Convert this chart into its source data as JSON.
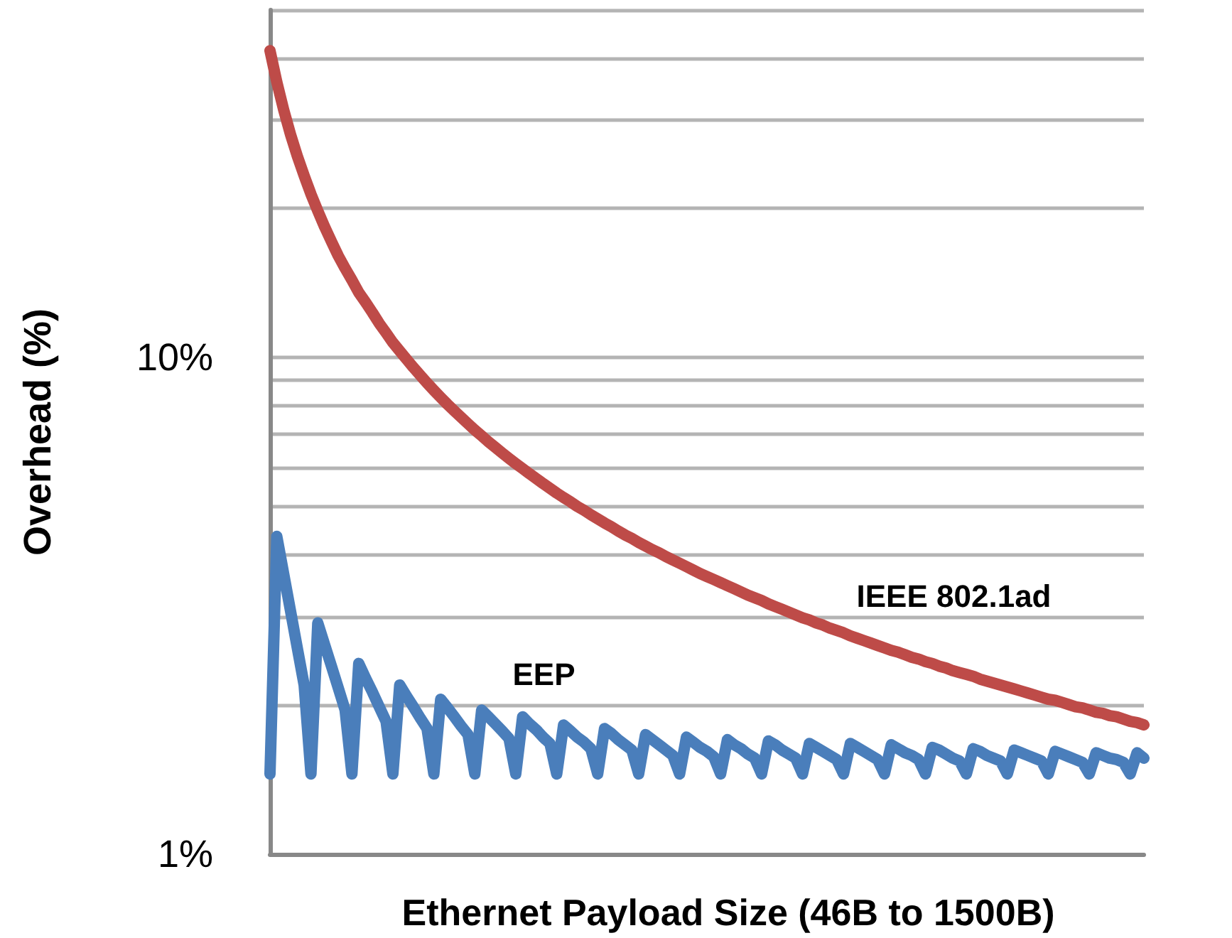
{
  "chart_data": {
    "type": "line",
    "xlabel": "Ethernet Payload Size (46B to 1500B)",
    "ylabel": "Overhead (%)",
    "ylim": [
      1,
      50
    ],
    "log": "y",
    "grid": "y",
    "tick_labels": "y",
    "marker": "none",
    "line_style": "solid",
    "categories": [
      null,
      null,
      null,
      null,
      null,
      null,
      null,
      null,
      null,
      null,
      null,
      null,
      null,
      null,
      null,
      null,
      null,
      null,
      null,
      null,
      null,
      null,
      null,
      null,
      null,
      null,
      null,
      null,
      null,
      null,
      null,
      null,
      null,
      null,
      null,
      null,
      null,
      null,
      null,
      null,
      null,
      null,
      null,
      null,
      null,
      null,
      null,
      null,
      null,
      null,
      null,
      null,
      null,
      null,
      null,
      null,
      null,
      null,
      null,
      null,
      null,
      null,
      null,
      null,
      null,
      null,
      null,
      null,
      null,
      null,
      null,
      null,
      null,
      null,
      null,
      null,
      null,
      null,
      null,
      null,
      null,
      null,
      null,
      null,
      null,
      null,
      null,
      null,
      null,
      null,
      null,
      null,
      null,
      null,
      null,
      null,
      null,
      null,
      null,
      null,
      null,
      null,
      null,
      null,
      null,
      null,
      null,
      null,
      null,
      null,
      null,
      null,
      null,
      null,
      null,
      null,
      null,
      null,
      null,
      null,
      null,
      null,
      null,
      null,
      null,
      null,
      null,
      null,
      null
    ],
    "yticks": [
      {
        "value": 1,
        "label": "1%"
      },
      {
        "value": 2,
        "label": null
      },
      {
        "value": 3,
        "label": null
      },
      {
        "value": 4,
        "label": null
      },
      {
        "value": 5,
        "label": null
      },
      {
        "value": 6,
        "label": null
      },
      {
        "value": 7,
        "label": null
      },
      {
        "value": 8,
        "label": null
      },
      {
        "value": 9,
        "label": null
      },
      {
        "value": 10,
        "label": "10%"
      },
      {
        "value": 20,
        "label": null
      },
      {
        "value": 30,
        "label": null
      },
      {
        "value": 40,
        "label": null
      },
      {
        "value": 50,
        "label": null
      }
    ],
    "series": [
      {
        "name": "IEEE 802.1ad",
        "color": "#be4b48",
        "values": [
          41.4,
          35.8,
          31.5,
          28.1,
          25.4,
          23.2,
          21.3,
          19.7,
          18.3,
          17.1,
          16.0,
          15.1,
          14.3,
          13.5,
          12.9,
          12.3,
          11.7,
          11.2,
          10.7,
          10.3,
          9.91,
          9.54,
          9.2,
          8.88,
          8.58,
          8.3,
          8.04,
          7.8,
          7.57,
          7.35,
          7.14,
          6.95,
          6.76,
          6.59,
          6.42,
          6.26,
          6.11,
          5.97,
          5.83,
          5.7,
          5.57,
          5.45,
          5.33,
          5.22,
          5.12,
          5.01,
          4.92,
          4.82,
          4.73,
          4.64,
          4.56,
          4.47,
          4.39,
          4.32,
          4.24,
          4.17,
          4.1,
          4.04,
          3.97,
          3.91,
          3.85,
          3.79,
          3.73,
          3.67,
          3.62,
          3.57,
          3.52,
          3.47,
          3.42,
          3.37,
          3.32,
          3.28,
          3.24,
          3.19,
          3.15,
          3.11,
          3.07,
          3.03,
          2.99,
          2.96,
          2.92,
          2.89,
          2.85,
          2.82,
          2.79,
          2.75,
          2.72,
          2.69,
          2.66,
          2.63,
          2.6,
          2.57,
          2.55,
          2.52,
          2.49,
          2.47,
          2.44,
          2.42,
          2.39,
          2.37,
          2.34,
          2.32,
          2.3,
          2.28,
          2.25,
          2.23,
          2.21,
          2.19,
          2.17,
          2.15,
          2.13,
          2.11,
          2.09,
          2.07,
          2.05,
          2.04,
          2.02,
          2.0,
          1.98,
          1.97,
          1.95,
          1.93,
          1.92,
          1.9,
          1.89,
          1.87,
          1.85,
          1.84,
          1.82
        ]
      },
      {
        "name": "EEP",
        "color": "#4a7ebb",
        "values": [
          1.45,
          4.36,
          3.67,
          3.09,
          2.6,
          2.19,
          1.45,
          2.92,
          2.64,
          2.39,
          2.16,
          1.95,
          1.45,
          2.42,
          2.26,
          2.12,
          1.98,
          1.85,
          1.45,
          2.19,
          2.08,
          1.98,
          1.88,
          1.79,
          1.45,
          2.05,
          1.97,
          1.89,
          1.81,
          1.74,
          1.45,
          1.95,
          1.89,
          1.83,
          1.77,
          1.71,
          1.45,
          1.89,
          1.83,
          1.78,
          1.72,
          1.67,
          1.45,
          1.82,
          1.77,
          1.72,
          1.68,
          1.63,
          1.45,
          1.79,
          1.75,
          1.7,
          1.66,
          1.62,
          1.45,
          1.74,
          1.7,
          1.66,
          1.62,
          1.58,
          1.45,
          1.72,
          1.68,
          1.64,
          1.61,
          1.57,
          1.45,
          1.7,
          1.66,
          1.63,
          1.59,
          1.56,
          1.45,
          1.69,
          1.66,
          1.62,
          1.59,
          1.56,
          1.45,
          1.67,
          1.64,
          1.61,
          1.58,
          1.55,
          1.45,
          1.67,
          1.64,
          1.61,
          1.58,
          1.55,
          1.45,
          1.66,
          1.63,
          1.6,
          1.58,
          1.55,
          1.45,
          1.64,
          1.62,
          1.59,
          1.56,
          1.54,
          1.45,
          1.63,
          1.61,
          1.58,
          1.56,
          1.54,
          1.45,
          1.62,
          1.6,
          1.58,
          1.56,
          1.54,
          1.45,
          1.61,
          1.59,
          1.57,
          1.55,
          1.53,
          1.45,
          1.6,
          1.58,
          1.56,
          1.55,
          1.53,
          1.45,
          1.6,
          1.56
        ]
      }
    ]
  }
}
